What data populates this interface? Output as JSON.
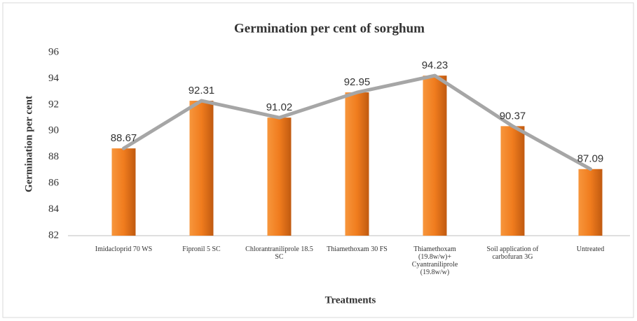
{
  "chart_data": {
    "type": "bar",
    "title": "Germination per cent of sorghum",
    "x_label": "Treatments",
    "y_label": "Germination per cent",
    "categories": [
      "Imidacloprid 70 WS",
      "Fipronil 5 SC",
      "Chlorantraniliprole 18.5 SC",
      "Thiamethoxam 30 FS",
      "Thiamethoxam (19.8w/w)+ Cyantraniliprole (19.8w/w)",
      "Soil application of carbofuran 3G",
      "Untreated"
    ],
    "values": [
      88.67,
      92.31,
      91.02,
      92.95,
      94.23,
      90.37,
      87.09
    ],
    "color": "#f07c1e",
    "line_color": "#a6a6a6",
    "ylim": [
      82,
      96
    ],
    "yticks": [
      82,
      84,
      86,
      88,
      90,
      92,
      94,
      96
    ],
    "grid": false
  }
}
